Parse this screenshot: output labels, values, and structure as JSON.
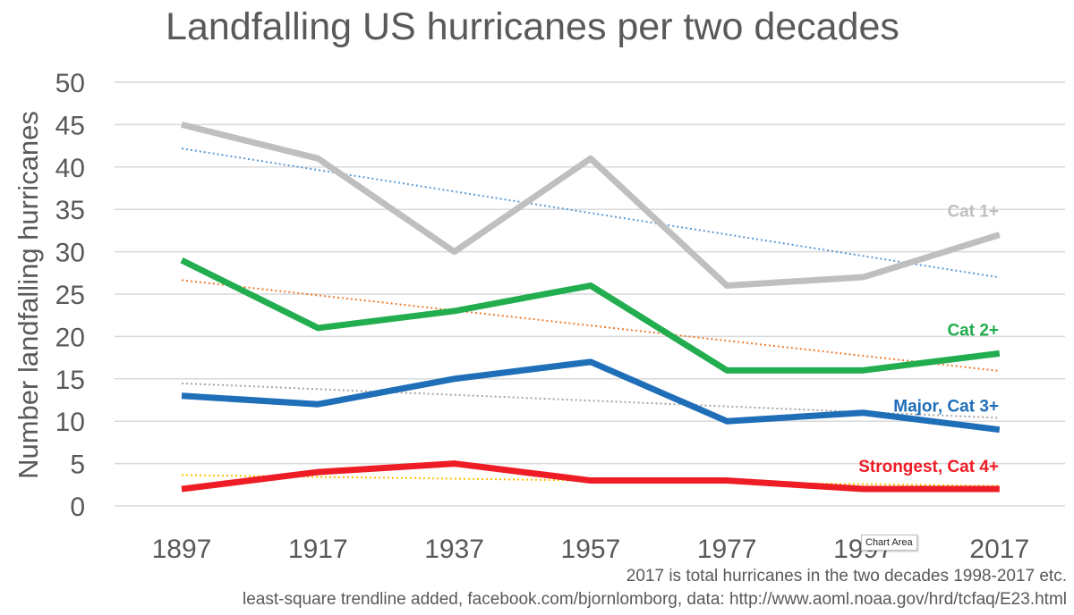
{
  "chart_data": {
    "type": "line",
    "title": "Landfalling US hurricanes per two decades",
    "ylabel": "Number landfalling hurricanes",
    "xlabel": "",
    "x": [
      "1897",
      "1917",
      "1937",
      "1957",
      "1977",
      "1997",
      "2017"
    ],
    "ylim": [
      0,
      50
    ],
    "yticks": [
      0,
      5,
      10,
      15,
      20,
      25,
      30,
      35,
      40,
      45,
      50
    ],
    "grid": true,
    "series": [
      {
        "name": "Cat 1+",
        "color": "#BFBFBF",
        "trend_color": "#5B9BD5",
        "values": [
          45,
          41,
          30,
          41,
          26,
          27,
          32
        ]
      },
      {
        "name": "Cat 2+",
        "color": "#22AD4F",
        "trend_color": "#ED7D31",
        "values": [
          29,
          21,
          23,
          26,
          16,
          16,
          18
        ]
      },
      {
        "name": "Major, Cat 3+",
        "color": "#1F6EB8",
        "trend_color": "#A5A5A5",
        "values": [
          13,
          12,
          15,
          17,
          10,
          11,
          9
        ]
      },
      {
        "name": "Strongest, Cat 4+",
        "color": "#EE1C25",
        "trend_color": "#FFC000",
        "values": [
          2,
          4,
          5,
          3,
          3,
          2,
          2
        ]
      }
    ],
    "trendline": "least-square",
    "annotations": [
      "2017 is total hurricanes in the two decades 1998-2017 etc.",
      "least-square trendline added, facebook.com/bjornlomborg, data: http://www.aoml.noaa.gov/hrd/tcfaq/E23.html"
    ]
  },
  "tooltip": "Chart Area"
}
